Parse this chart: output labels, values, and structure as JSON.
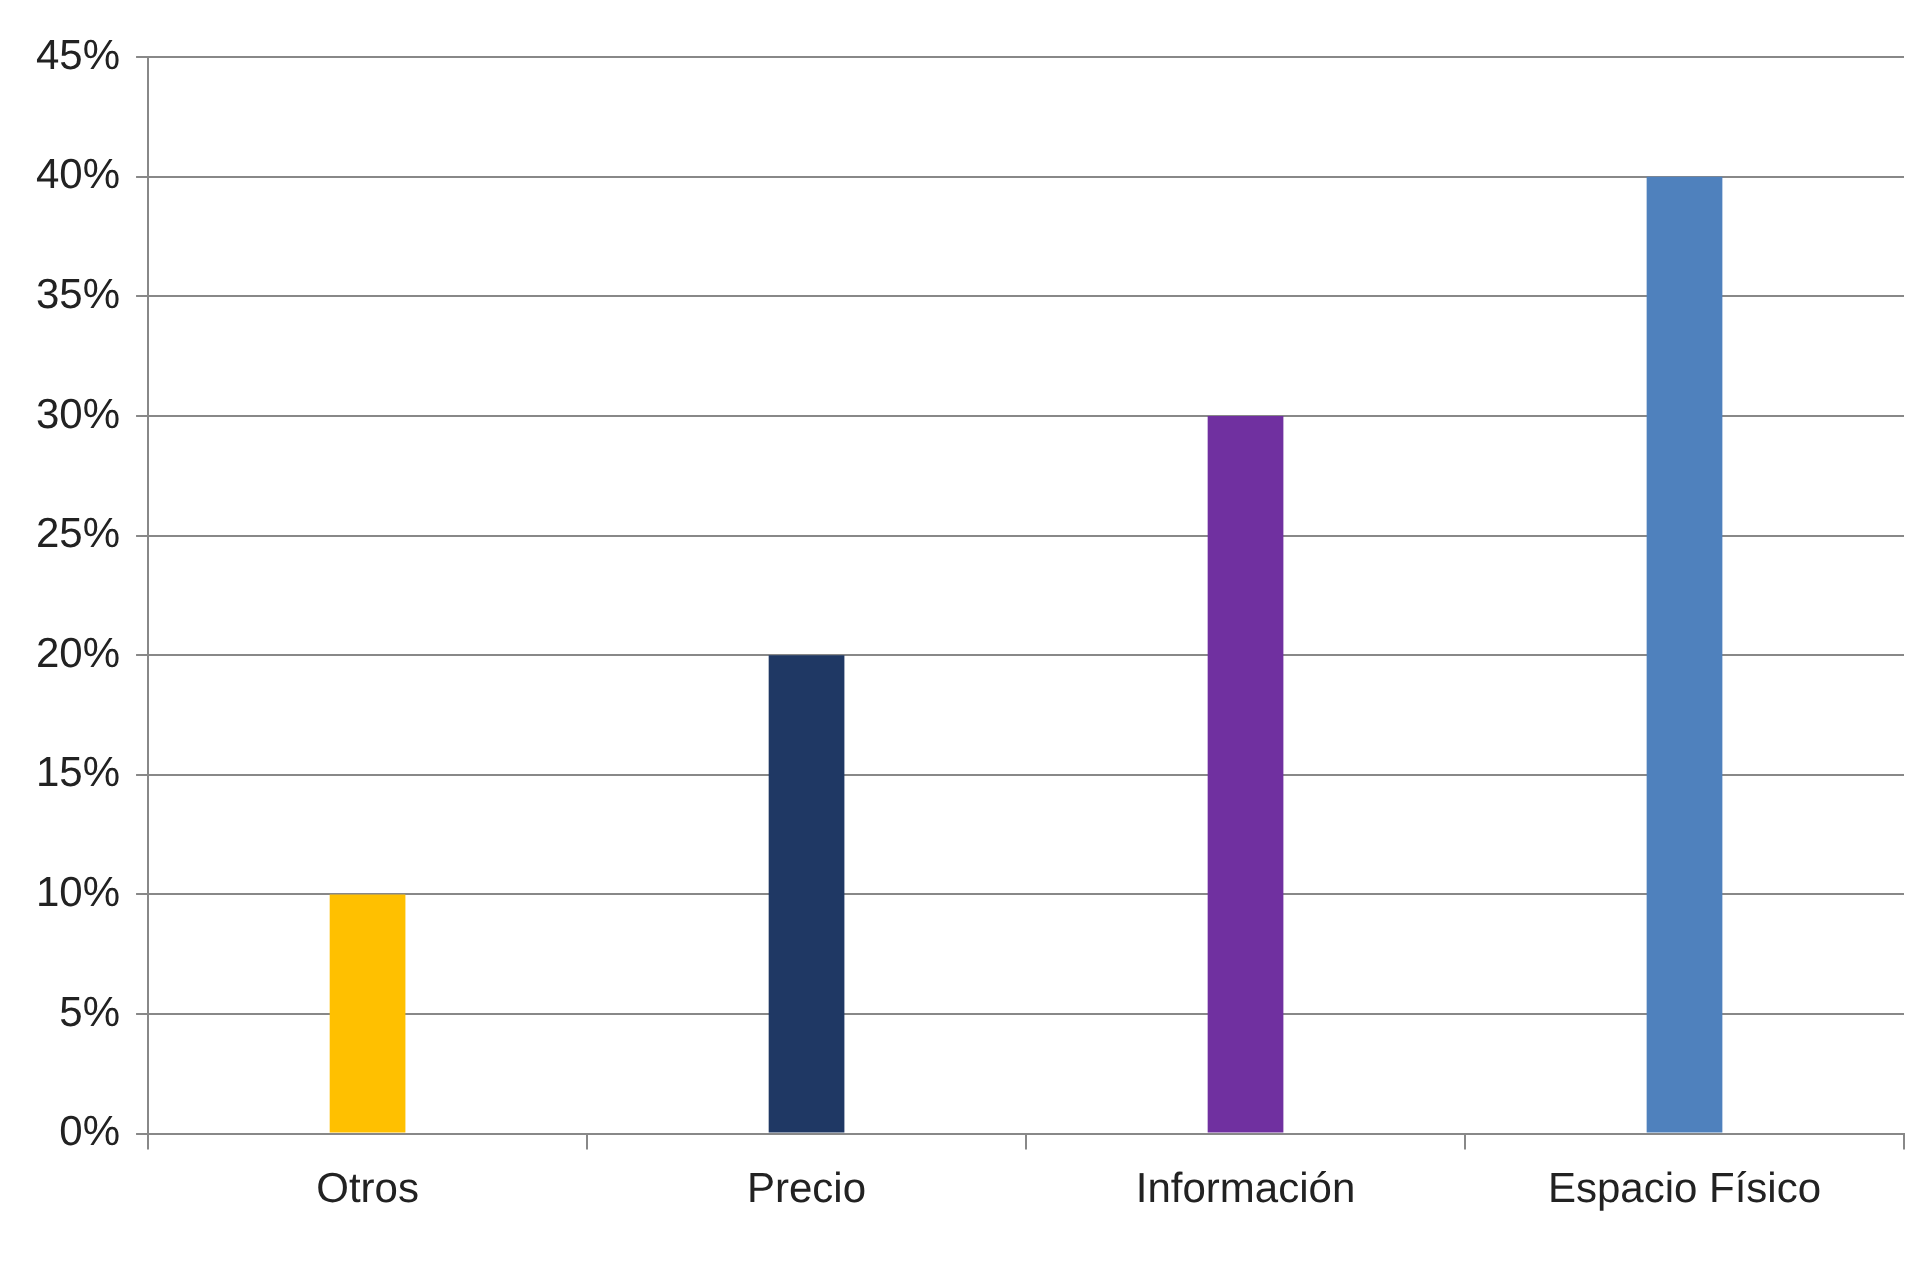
{
  "chart_data": {
    "type": "bar",
    "categories": [
      "Otros",
      "Precio",
      "Información",
      "Espacio Físico"
    ],
    "values": [
      10,
      20,
      30,
      40
    ],
    "colors": [
      "#ffc000",
      "#1f3864",
      "#7030a0",
      "#4f81bd"
    ],
    "ylim": [
      0,
      45
    ],
    "yticks": [
      {
        "value": 0,
        "label": "0%"
      },
      {
        "value": 5,
        "label": "5%"
      },
      {
        "value": 10,
        "label": "10%"
      },
      {
        "value": 15,
        "label": "15%"
      },
      {
        "value": 20,
        "label": "20%"
      },
      {
        "value": 25,
        "label": "25%"
      },
      {
        "value": 30,
        "label": "30%"
      },
      {
        "value": 35,
        "label": "35%"
      },
      {
        "value": 40,
        "label": "40%"
      },
      {
        "value": 45,
        "label": "45%"
      }
    ],
    "grid": "y",
    "legend": false
  }
}
